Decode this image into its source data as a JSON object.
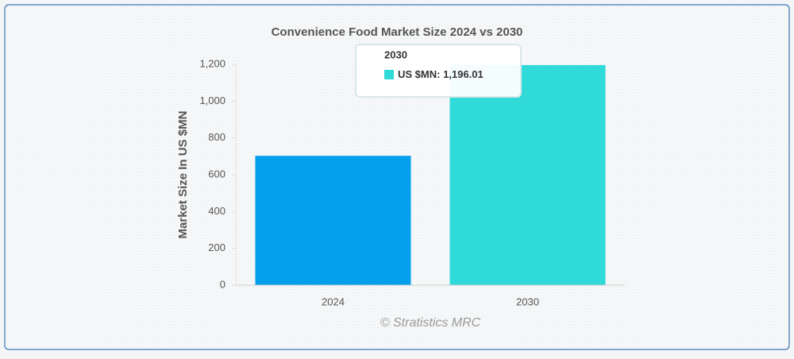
{
  "chart_data": {
    "type": "bar",
    "title": "Convenience Food Market Size 2024 vs 2030",
    "y_label": "Market Size In US $MN",
    "categories": [
      "2024",
      "2030"
    ],
    "series": [
      {
        "name": "US $MN",
        "colors": [
          "#039fed",
          "#2fdad9"
        ],
        "values": [
          703,
          1196.01
        ],
        "value_labels": [
          null,
          "1,196.01"
        ]
      }
    ],
    "ylim": [
      0,
      1200
    ],
    "yticks": [
      0,
      200,
      400,
      600,
      800,
      {
        "value": 1000,
        "label": "1,000"
      },
      {
        "value": 1200,
        "label": "1,200"
      }
    ],
    "credits": "© Stratistics MRC",
    "tooltip_index": 1
  }
}
